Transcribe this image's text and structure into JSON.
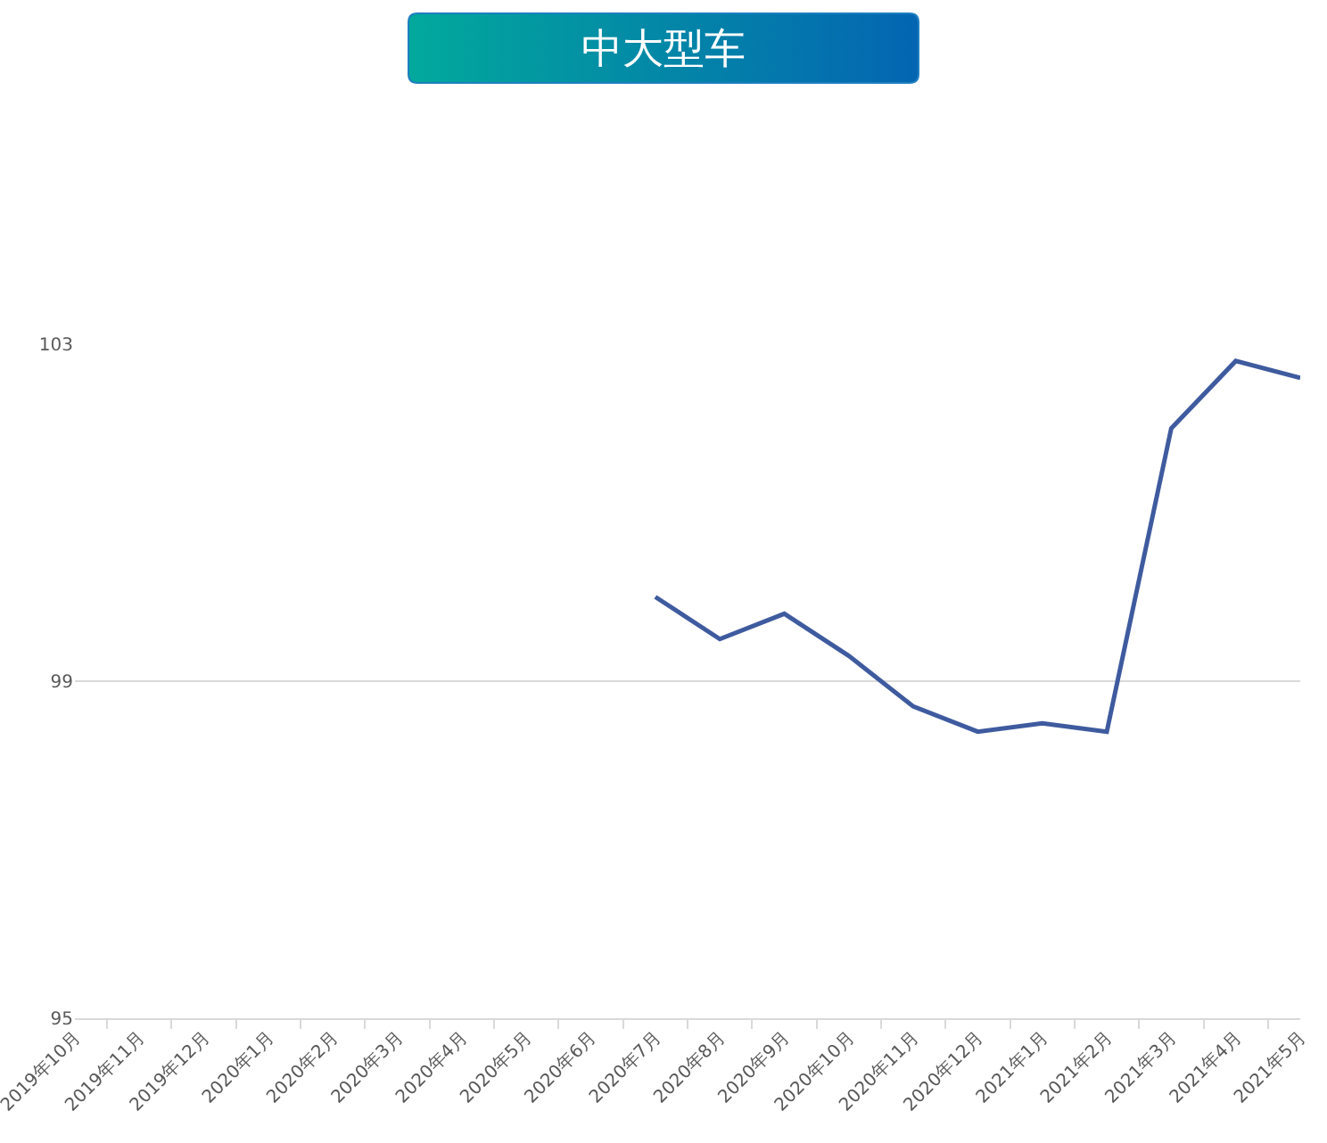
{
  "chart_data": {
    "type": "line",
    "title": "中大型车",
    "categories": [
      "2019年10月",
      "2019年11月",
      "2019年12月",
      "2020年1月",
      "2020年2月",
      "2020年3月",
      "2020年4月",
      "2020年5月",
      "2020年6月",
      "2020年7月",
      "2020年8月",
      "2020年9月",
      "2020年10月",
      "2020年11月",
      "2020年12月",
      "2021年1月",
      "2021年2月",
      "2021年3月",
      "2021年4月",
      "2021年5月"
    ],
    "series": [
      {
        "color": "#3f5b9f",
        "values": [
          null,
          null,
          null,
          null,
          null,
          null,
          null,
          null,
          null,
          100.0,
          99.5,
          99.8,
          99.3,
          98.7,
          98.4,
          98.5,
          98.4,
          102.0,
          102.8,
          102.6
        ]
      }
    ],
    "ylim": [
      95,
      103
    ],
    "yticks": [
      95,
      99,
      103
    ],
    "grid": "y",
    "marker": "none",
    "line_style": "solid"
  }
}
